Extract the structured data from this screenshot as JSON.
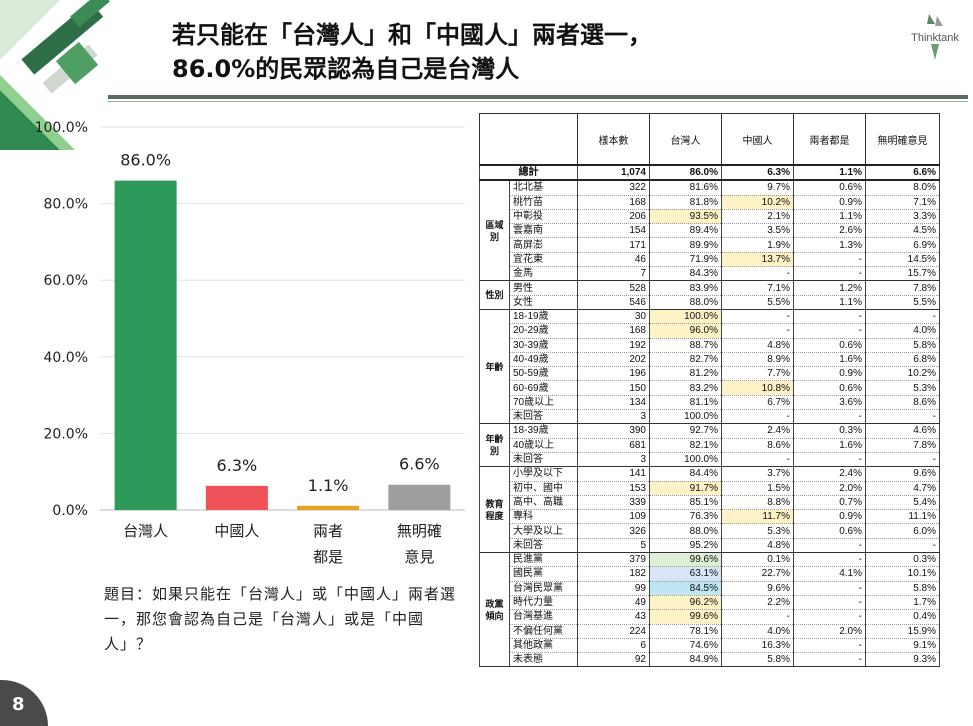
{
  "title_line1": "若只能在「台灣人」和「中國人」兩者選一，",
  "title_line2": "86.0%的民眾認為自己是台灣人",
  "logo_text": "Thinktank",
  "page_number": "8",
  "question": "題目：如果只能在「台灣人」或「中國人」兩者選一，那您會認為自己是「台灣人」或是「中國人」？",
  "colors": {
    "green": "#2e9a5a",
    "red": "#f0525a",
    "yellow": "#e0a420",
    "gray": "#9e9e9e"
  },
  "chart_data": {
    "type": "bar",
    "categories": [
      "台灣人",
      "中國人",
      "兩者都是",
      "無明確意見"
    ],
    "category_lines": [
      [
        "台灣人"
      ],
      [
        "中國人"
      ],
      [
        "兩者",
        "都是"
      ],
      [
        "無明確",
        "意見"
      ]
    ],
    "values": [
      86.0,
      6.3,
      1.1,
      6.6
    ],
    "value_labels": [
      "86.0%",
      "6.3%",
      "1.1%",
      "6.6%"
    ],
    "colors": [
      "#2e9a5a",
      "#f0525a",
      "#e0a420",
      "#9e9e9e"
    ],
    "ylim": [
      0,
      100
    ],
    "yticks": [
      "0.0%",
      "20.0%",
      "40.0%",
      "60.0%",
      "80.0%",
      "100.0%"
    ],
    "grid": true
  },
  "table": {
    "headers": [
      "樣本數",
      "台灣人",
      "中國人",
      "兩者都是",
      "無明確意見"
    ],
    "total": {
      "label": "總計",
      "values": [
        "1,074",
        "86.0%",
        "6.3%",
        "1.1%",
        "6.6%"
      ]
    },
    "groups": [
      {
        "name": "區域別",
        "rows": [
          {
            "label": "北北基",
            "values": [
              "322",
              "81.6%",
              "9.7%",
              "0.6%",
              "8.0%"
            ]
          },
          {
            "label": "桃竹苗",
            "values": [
              "168",
              "81.8%",
              "10.2%",
              "0.9%",
              "7.1%"
            ],
            "hl": [
              null,
              null,
              "y",
              null,
              null
            ]
          },
          {
            "label": "中彰投",
            "values": [
              "206",
              "93.5%",
              "2.1%",
              "1.1%",
              "3.3%"
            ],
            "hl": [
              null,
              "y",
              null,
              null,
              null
            ]
          },
          {
            "label": "雲嘉南",
            "values": [
              "154",
              "89.4%",
              "3.5%",
              "2.6%",
              "4.5%"
            ]
          },
          {
            "label": "高屏澎",
            "values": [
              "171",
              "89.9%",
              "1.9%",
              "1.3%",
              "6.9%"
            ]
          },
          {
            "label": "宜花東",
            "values": [
              "46",
              "71.9%",
              "13.7%",
              "-",
              "14.5%"
            ],
            "hl": [
              null,
              null,
              "y",
              null,
              null
            ]
          },
          {
            "label": "金馬",
            "values": [
              "7",
              "84.3%",
              "-",
              "-",
              "15.7%"
            ]
          }
        ]
      },
      {
        "name": "性別",
        "rows": [
          {
            "label": "男性",
            "values": [
              "528",
              "83.9%",
              "7.1%",
              "1.2%",
              "7.8%"
            ]
          },
          {
            "label": "女性",
            "values": [
              "546",
              "88.0%",
              "5.5%",
              "1.1%",
              "5.5%"
            ]
          }
        ]
      },
      {
        "name": "年齡",
        "rows": [
          {
            "label": "18-19歲",
            "values": [
              "30",
              "100.0%",
              "-",
              "-",
              "-"
            ],
            "hl": [
              null,
              "y",
              null,
              null,
              null
            ]
          },
          {
            "label": "20-29歲",
            "values": [
              "168",
              "96.0%",
              "-",
              "-",
              "4.0%"
            ],
            "hl": [
              null,
              "y",
              null,
              null,
              null
            ]
          },
          {
            "label": "30-39歲",
            "values": [
              "192",
              "88.7%",
              "4.8%",
              "0.6%",
              "5.8%"
            ]
          },
          {
            "label": "40-49歲",
            "values": [
              "202",
              "82.7%",
              "8.9%",
              "1.6%",
              "6.8%"
            ]
          },
          {
            "label": "50-59歲",
            "values": [
              "196",
              "81.2%",
              "7.7%",
              "0.9%",
              "10.2%"
            ]
          },
          {
            "label": "60-69歲",
            "values": [
              "150",
              "83.2%",
              "10.8%",
              "0.6%",
              "5.3%"
            ],
            "hl": [
              null,
              null,
              "y",
              null,
              null
            ]
          },
          {
            "label": "70歲以上",
            "values": [
              "134",
              "81.1%",
              "6.7%",
              "3.6%",
              "8.6%"
            ]
          },
          {
            "label": "未回答",
            "values": [
              "3",
              "100.0%",
              "-",
              "-",
              "-"
            ]
          }
        ]
      },
      {
        "name": "年齡別",
        "rows": [
          {
            "label": "18-39歲",
            "values": [
              "390",
              "92.7%",
              "2.4%",
              "0.3%",
              "4.6%"
            ]
          },
          {
            "label": "40歲以上",
            "values": [
              "681",
              "82.1%",
              "8.6%",
              "1.6%",
              "7.8%"
            ]
          },
          {
            "label": "未回答",
            "values": [
              "3",
              "100.0%",
              "-",
              "-",
              "-"
            ]
          }
        ]
      },
      {
        "name": "教育程度",
        "rows": [
          {
            "label": "小學及以下",
            "values": [
              "141",
              "84.4%",
              "3.7%",
              "2.4%",
              "9.6%"
            ]
          },
          {
            "label": "初中、國中",
            "values": [
              "153",
              "91.7%",
              "1.5%",
              "2.0%",
              "4.7%"
            ],
            "hl": [
              null,
              "y",
              null,
              null,
              null
            ]
          },
          {
            "label": "高中、高職",
            "values": [
              "339",
              "85.1%",
              "8.8%",
              "0.7%",
              "5.4%"
            ]
          },
          {
            "label": "專科",
            "values": [
              "109",
              "76.3%",
              "11.7%",
              "0.9%",
              "11.1%"
            ],
            "hl": [
              null,
              null,
              "y",
              null,
              null
            ]
          },
          {
            "label": "大學及以上",
            "values": [
              "326",
              "88.0%",
              "5.3%",
              "0.6%",
              "6.0%"
            ]
          },
          {
            "label": "未回答",
            "values": [
              "5",
              "95.2%",
              "4.8%",
              "-",
              "-"
            ]
          }
        ]
      },
      {
        "name": "政黨傾向",
        "rows": [
          {
            "label": "民進黨",
            "values": [
              "379",
              "99.6%",
              "0.1%",
              "-",
              "0.3%"
            ],
            "hl": [
              null,
              "g",
              null,
              null,
              null
            ]
          },
          {
            "label": "國民黨",
            "values": [
              "182",
              "63.1%",
              "22.7%",
              "4.1%",
              "10.1%"
            ],
            "hl": [
              null,
              "p",
              null,
              null,
              null
            ]
          },
          {
            "label": "台灣民眾黨",
            "values": [
              "99",
              "84.5%",
              "9.6%",
              "-",
              "5.8%"
            ],
            "hl": [
              null,
              "b",
              null,
              null,
              null
            ]
          },
          {
            "label": "時代力量",
            "values": [
              "49",
              "96.2%",
              "2.2%",
              "-",
              "1.7%"
            ],
            "hl": [
              null,
              "y",
              null,
              null,
              null
            ]
          },
          {
            "label": "台灣基進",
            "values": [
              "43",
              "99.6%",
              "-",
              "-",
              "0.4%"
            ],
            "hl": [
              null,
              "y",
              null,
              null,
              null
            ]
          },
          {
            "label": "不偏任何黨",
            "values": [
              "224",
              "78.1%",
              "4.0%",
              "2.0%",
              "15.9%"
            ]
          },
          {
            "label": "其他政黨",
            "values": [
              "6",
              "74.6%",
              "16.3%",
              "-",
              "9.1%"
            ]
          },
          {
            "label": "未表態",
            "values": [
              "92",
              "84.9%",
              "5.8%",
              "-",
              "9.3%"
            ]
          }
        ]
      }
    ]
  }
}
